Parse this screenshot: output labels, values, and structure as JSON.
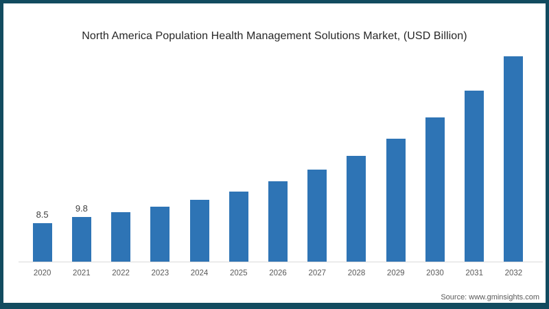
{
  "frame": {
    "border_color": "#124b5f",
    "background": "#ffffff"
  },
  "source": "Source: www.gminsights.com",
  "chart_data": {
    "type": "bar",
    "title": "North America Population Health Management Solutions Market, (USD Billion)",
    "xlabel": "",
    "ylabel": "",
    "categories": [
      "2020",
      "2021",
      "2022",
      "2023",
      "2024",
      "2025",
      "2026",
      "2027",
      "2028",
      "2029",
      "2030",
      "2031",
      "2032"
    ],
    "values": [
      8.5,
      9.8,
      10.9,
      12.2,
      13.7,
      15.5,
      17.8,
      20.3,
      23.4,
      27.2,
      31.8,
      37.8,
      45.3
    ],
    "value_labels": [
      "8.5",
      "9.8",
      "",
      "",
      "",
      "",
      "",
      "",
      "",
      "",
      "",
      "",
      ""
    ],
    "ylim": [
      0,
      57
    ],
    "grid": false,
    "legend": "none",
    "bar_color": "#2e74b5",
    "axis_line_color": "#d9d9d9",
    "tick_label_color": "#595959",
    "value_label_color": "#3f3f3f",
    "title_color": "#262626",
    "source_color": "#595959"
  }
}
